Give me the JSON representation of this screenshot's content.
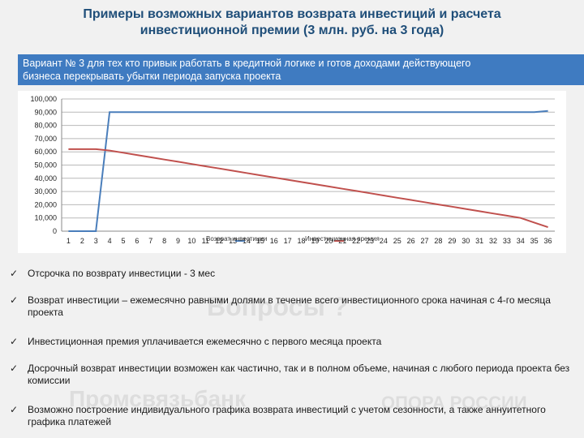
{
  "title": {
    "line1": "Примеры возможных вариантов возврата инвестиций и расчета",
    "line2": "инвестиционной премии (3 млн. руб. на 3 года)"
  },
  "banner": {
    "line1": "Вариант № 3 для тех кто привык работать в кредитной логике и готов доходами действующего",
    "line2": "бизнеса перекрывать убытки периода запуска проекта"
  },
  "watermarks": {
    "questions": "Вопросы ?",
    "bank": "Промсвязьбанк",
    "opora": "ОПОРА РОССИИ"
  },
  "chart_data": {
    "type": "line",
    "x": [
      1,
      2,
      3,
      4,
      5,
      6,
      7,
      8,
      9,
      10,
      11,
      12,
      13,
      14,
      15,
      16,
      17,
      18,
      19,
      20,
      21,
      22,
      23,
      24,
      25,
      26,
      27,
      28,
      29,
      30,
      31,
      32,
      33,
      34,
      35,
      36
    ],
    "y_ticks": [
      "0",
      "10,000",
      "20,000",
      "30,000",
      "40,000",
      "50,000",
      "60,000",
      "70,000",
      "80,000",
      "90,000",
      "100,000"
    ],
    "ylim": [
      0,
      100000
    ],
    "grid": true,
    "legend_position": "bottom-center",
    "series": [
      {
        "name": "Возврат инвестиции",
        "color": "#4a7ebb",
        "values": [
          0,
          0,
          0,
          90000,
          90000,
          90000,
          90000,
          90000,
          90000,
          90000,
          90000,
          90000,
          90000,
          90000,
          90000,
          90000,
          90000,
          90000,
          90000,
          90000,
          90000,
          90000,
          90000,
          90000,
          90000,
          90000,
          90000,
          90000,
          90000,
          90000,
          90000,
          90000,
          90000,
          90000,
          90000,
          91000
        ]
      },
      {
        "name": "Инвестиционная премия",
        "color": "#c0504d",
        "values": [
          62000,
          62000,
          62000,
          61000,
          59300,
          57600,
          55900,
          54200,
          52500,
          50800,
          49100,
          47400,
          45700,
          44000,
          42300,
          40600,
          38900,
          37200,
          35500,
          33800,
          32100,
          30400,
          28700,
          27000,
          25300,
          23600,
          21900,
          20200,
          18500,
          16800,
          15100,
          13400,
          11700,
          10000,
          6500,
          3000
        ]
      }
    ]
  },
  "bullets": [
    "Отсрочка по возврату инвестиции - 3 мес",
    "Возврат инвестиции – ежемесячно равными долями в течение всего инвестиционного срока начиная с 4-го месяца проекта",
    "Инвестиционная премия уплачивается  ежемесячно с первого месяца проекта",
    "Досрочный возврат инвестиции возможен как частично, так и в полном объеме, начиная с любого периода проекта без комиссии",
    "Возможно построение индивидуального графика  возврата инвестиций с учетом сезонности, а также аннуитетного графика платежей"
  ],
  "check_glyph": "✓"
}
